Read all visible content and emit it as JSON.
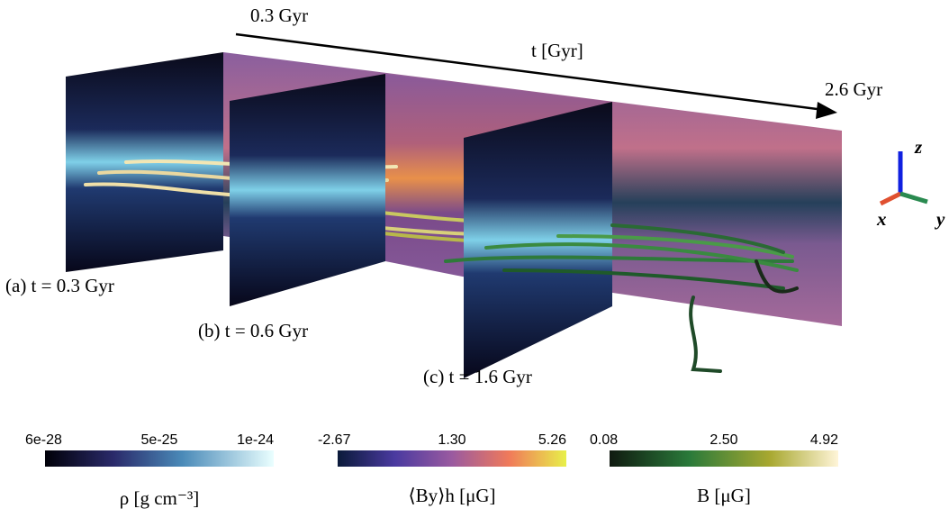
{
  "time_axis": {
    "start": "0.3 Gyr",
    "label": "t [Gyr]",
    "end": "2.6 Gyr"
  },
  "panels": [
    {
      "label": "(a) t = 0.3 Gyr"
    },
    {
      "label": "(b) t = 0.6 Gyr"
    },
    {
      "label": "(c) t = 1.6 Gyr"
    }
  ],
  "axes_triad": {
    "z": "z",
    "x": "x",
    "y": "y"
  },
  "colorbars": [
    {
      "ticks": [
        "6e-28",
        "5e-25",
        "1e-24"
      ],
      "label": "ρ [g cm⁻³]"
    },
    {
      "ticks": [
        "-2.67",
        "1.30",
        "5.26"
      ],
      "label": "⟨By⟩h [μG]"
    },
    {
      "ticks": [
        "0.08",
        "2.50",
        "4.92"
      ],
      "label": "B [μG]"
    }
  ]
}
